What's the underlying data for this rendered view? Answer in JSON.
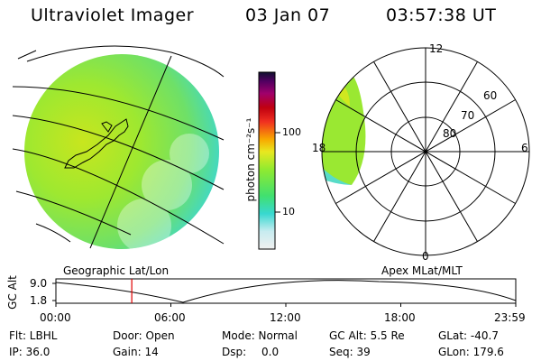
{
  "header": {
    "title": "Ultraviolet Imager",
    "date": "03 Jan 07",
    "time": "03:57:38 UT"
  },
  "colorbar": {
    "unit_label": "photon cm⁻²s⁻¹",
    "tick_100": "100",
    "tick_10": "10"
  },
  "polar": {
    "mlt_top": "12",
    "mlt_left": "18",
    "mlt_right": "6",
    "mlt_bottom": "0",
    "lat_60": "60",
    "lat_70": "70",
    "lat_80": "80"
  },
  "panel_labels": {
    "left": "Geographic Lat/Lon",
    "right": "Apex MLat/MLT"
  },
  "altitude_plot": {
    "ylabel": "GC Alt",
    "ytick_high": "9.0",
    "ytick_low": "1.8",
    "x_ticks": [
      "00:00",
      "06:00",
      "12:00",
      "18:00",
      "23:59"
    ],
    "marker_time_hours": 3.96,
    "accent_color": "#e00000"
  },
  "footer": {
    "flt": "Flt: LBHL",
    "door": "Door: Open",
    "mode": "Mode: Normal",
    "gcalt": "GC Alt: 5.5 Re",
    "glat": "GLat: -40.7",
    "ip": "IP: 36.0",
    "gain": "Gain: 14",
    "dsp": "Dsp:",
    "dsp_value": "0.0",
    "seq": "Seq: 39",
    "glon": "GLon: 179.6"
  }
}
